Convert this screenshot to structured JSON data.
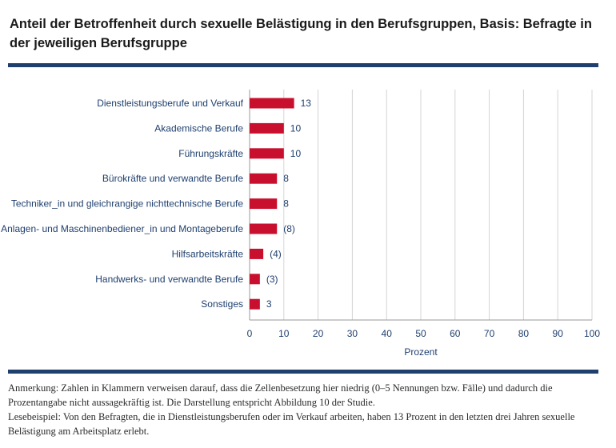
{
  "title": "Anteil der Betroffenheit durch sexuelle Belästigung in den Berufsgruppen, Basis: Befragte in der jeweiligen Berufsgruppe",
  "notes": {
    "anmerkung": "Anmerkung: Zahlen in Klammern verweisen darauf, dass die Zellenbesetzung hier niedrig (0–5 Nennungen bzw. Fälle) und dadurch die Prozentangabe nicht aussagekräftig ist. Die Darstellung entspricht Abbildung 10 der Studie.",
    "lesebeispiel": "Lesebeispiel: Von den Befragten, die in Dienstleistungsberufen oder im Verkauf arbeiten, haben 13 Prozent in den letzten drei Jahren sexuelle Belästigung am Arbeitsplatz erlebt."
  },
  "colors": {
    "bar": "#c8102e",
    "rule": "#1f3f6e",
    "text": "#1f3f6e",
    "grid": "#d4d4d4"
  },
  "chart_data": {
    "type": "bar",
    "orientation": "horizontal",
    "categories": [
      "Dienstleistungsberufe und Verkauf",
      "Akademische Berufe",
      "Führungskräfte",
      "Bürokräfte und verwandte Berufe",
      "Techniker_in und gleichrangige nichttechnische Berufe",
      "Anlagen- und Maschinenbediener_in und Montageberufe",
      "Hilfsarbeitskräfte",
      "Handwerks- und verwandte Berufe",
      "Sonstiges"
    ],
    "values": [
      13,
      10,
      10,
      8,
      8,
      8,
      4,
      3,
      3
    ],
    "value_labels": [
      "13",
      "10",
      "10",
      "8",
      "8",
      "(8)",
      "(4)",
      "(3)",
      "3"
    ],
    "xlabel": "Prozent",
    "xlim": [
      0,
      100
    ],
    "xticks": [
      0,
      10,
      20,
      30,
      40,
      50,
      60,
      70,
      80,
      90,
      100
    ],
    "grid": "vertical"
  }
}
